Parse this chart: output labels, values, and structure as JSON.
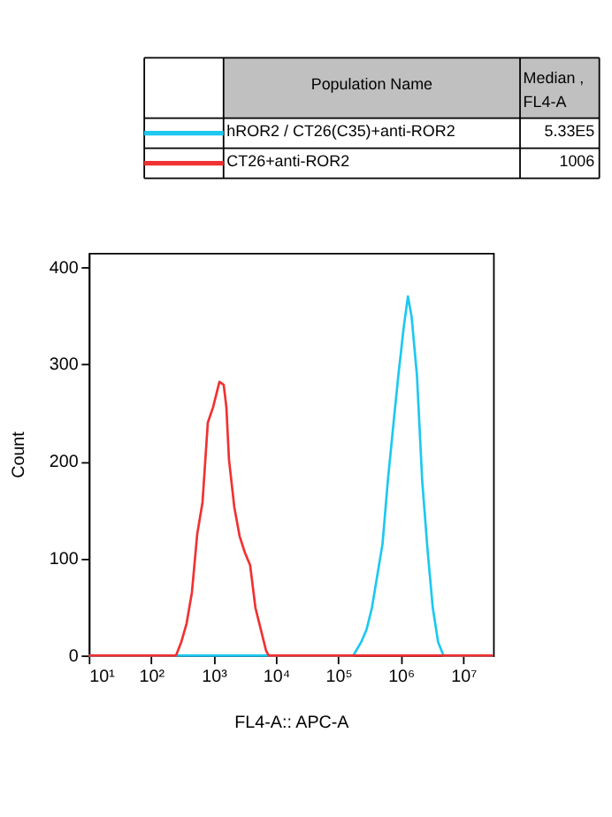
{
  "chart_data": {
    "type": "line",
    "xlabel": "FL4-A:: APC-A",
    "ylabel": "Count",
    "legend_title": "Population Name",
    "annotations": [
      "Median , FL4-A",
      "5.33E5",
      "1006"
    ],
    "legend": "top",
    "grid": false,
    "log": "x",
    "xlim": [
      10,
      30000000
    ],
    "ylim": [
      0,
      415
    ],
    "xticks": [
      {
        "value": 10,
        "label": "10¹"
      },
      {
        "value": 100,
        "label": "10²"
      },
      {
        "value": 1000,
        "label": "10³"
      },
      {
        "value": 10000,
        "label": "10⁴"
      },
      {
        "value": 100000,
        "label": "10⁵"
      },
      {
        "value": 1000000,
        "label": "10⁶"
      },
      {
        "value": 10000000,
        "label": "10⁷"
      }
    ],
    "yticks": [
      0,
      100,
      200,
      300,
      400
    ],
    "series": [
      {
        "name": "hROR2 / CT26(C35)+anti-ROR2",
        "color": "#1ec8f0",
        "x": [
          10,
          173400,
          232300,
          282500,
          343600,
          417800,
          508000,
          617700,
          750400,
          912400,
          1109000,
          1297000,
          1486000,
          1807000,
          2197000,
          2671000,
          3245000,
          3945000,
          4797000,
          30000000
        ],
        "values": [
          0,
          0,
          14,
          27,
          49,
          82,
          115,
          180,
          235,
          289,
          338,
          370,
          349,
          289,
          180,
          109,
          49,
          14,
          0,
          0
        ]
      },
      {
        "name": "CT26+anti-ROR2",
        "color": "#f03232",
        "x": [
          10,
          250,
          304,
          369,
          449,
          546,
          664,
          807,
          982,
          1239,
          1449,
          1600,
          1762,
          2143,
          2606,
          3170,
          3846,
          4677,
          5689,
          6918,
          7621,
          30000000
        ],
        "values": [
          0,
          0,
          14,
          33,
          65,
          125,
          158,
          240,
          256,
          282,
          279,
          256,
          202,
          153,
          123,
          106,
          93,
          49,
          27,
          5,
          0,
          0
        ]
      }
    ]
  }
}
